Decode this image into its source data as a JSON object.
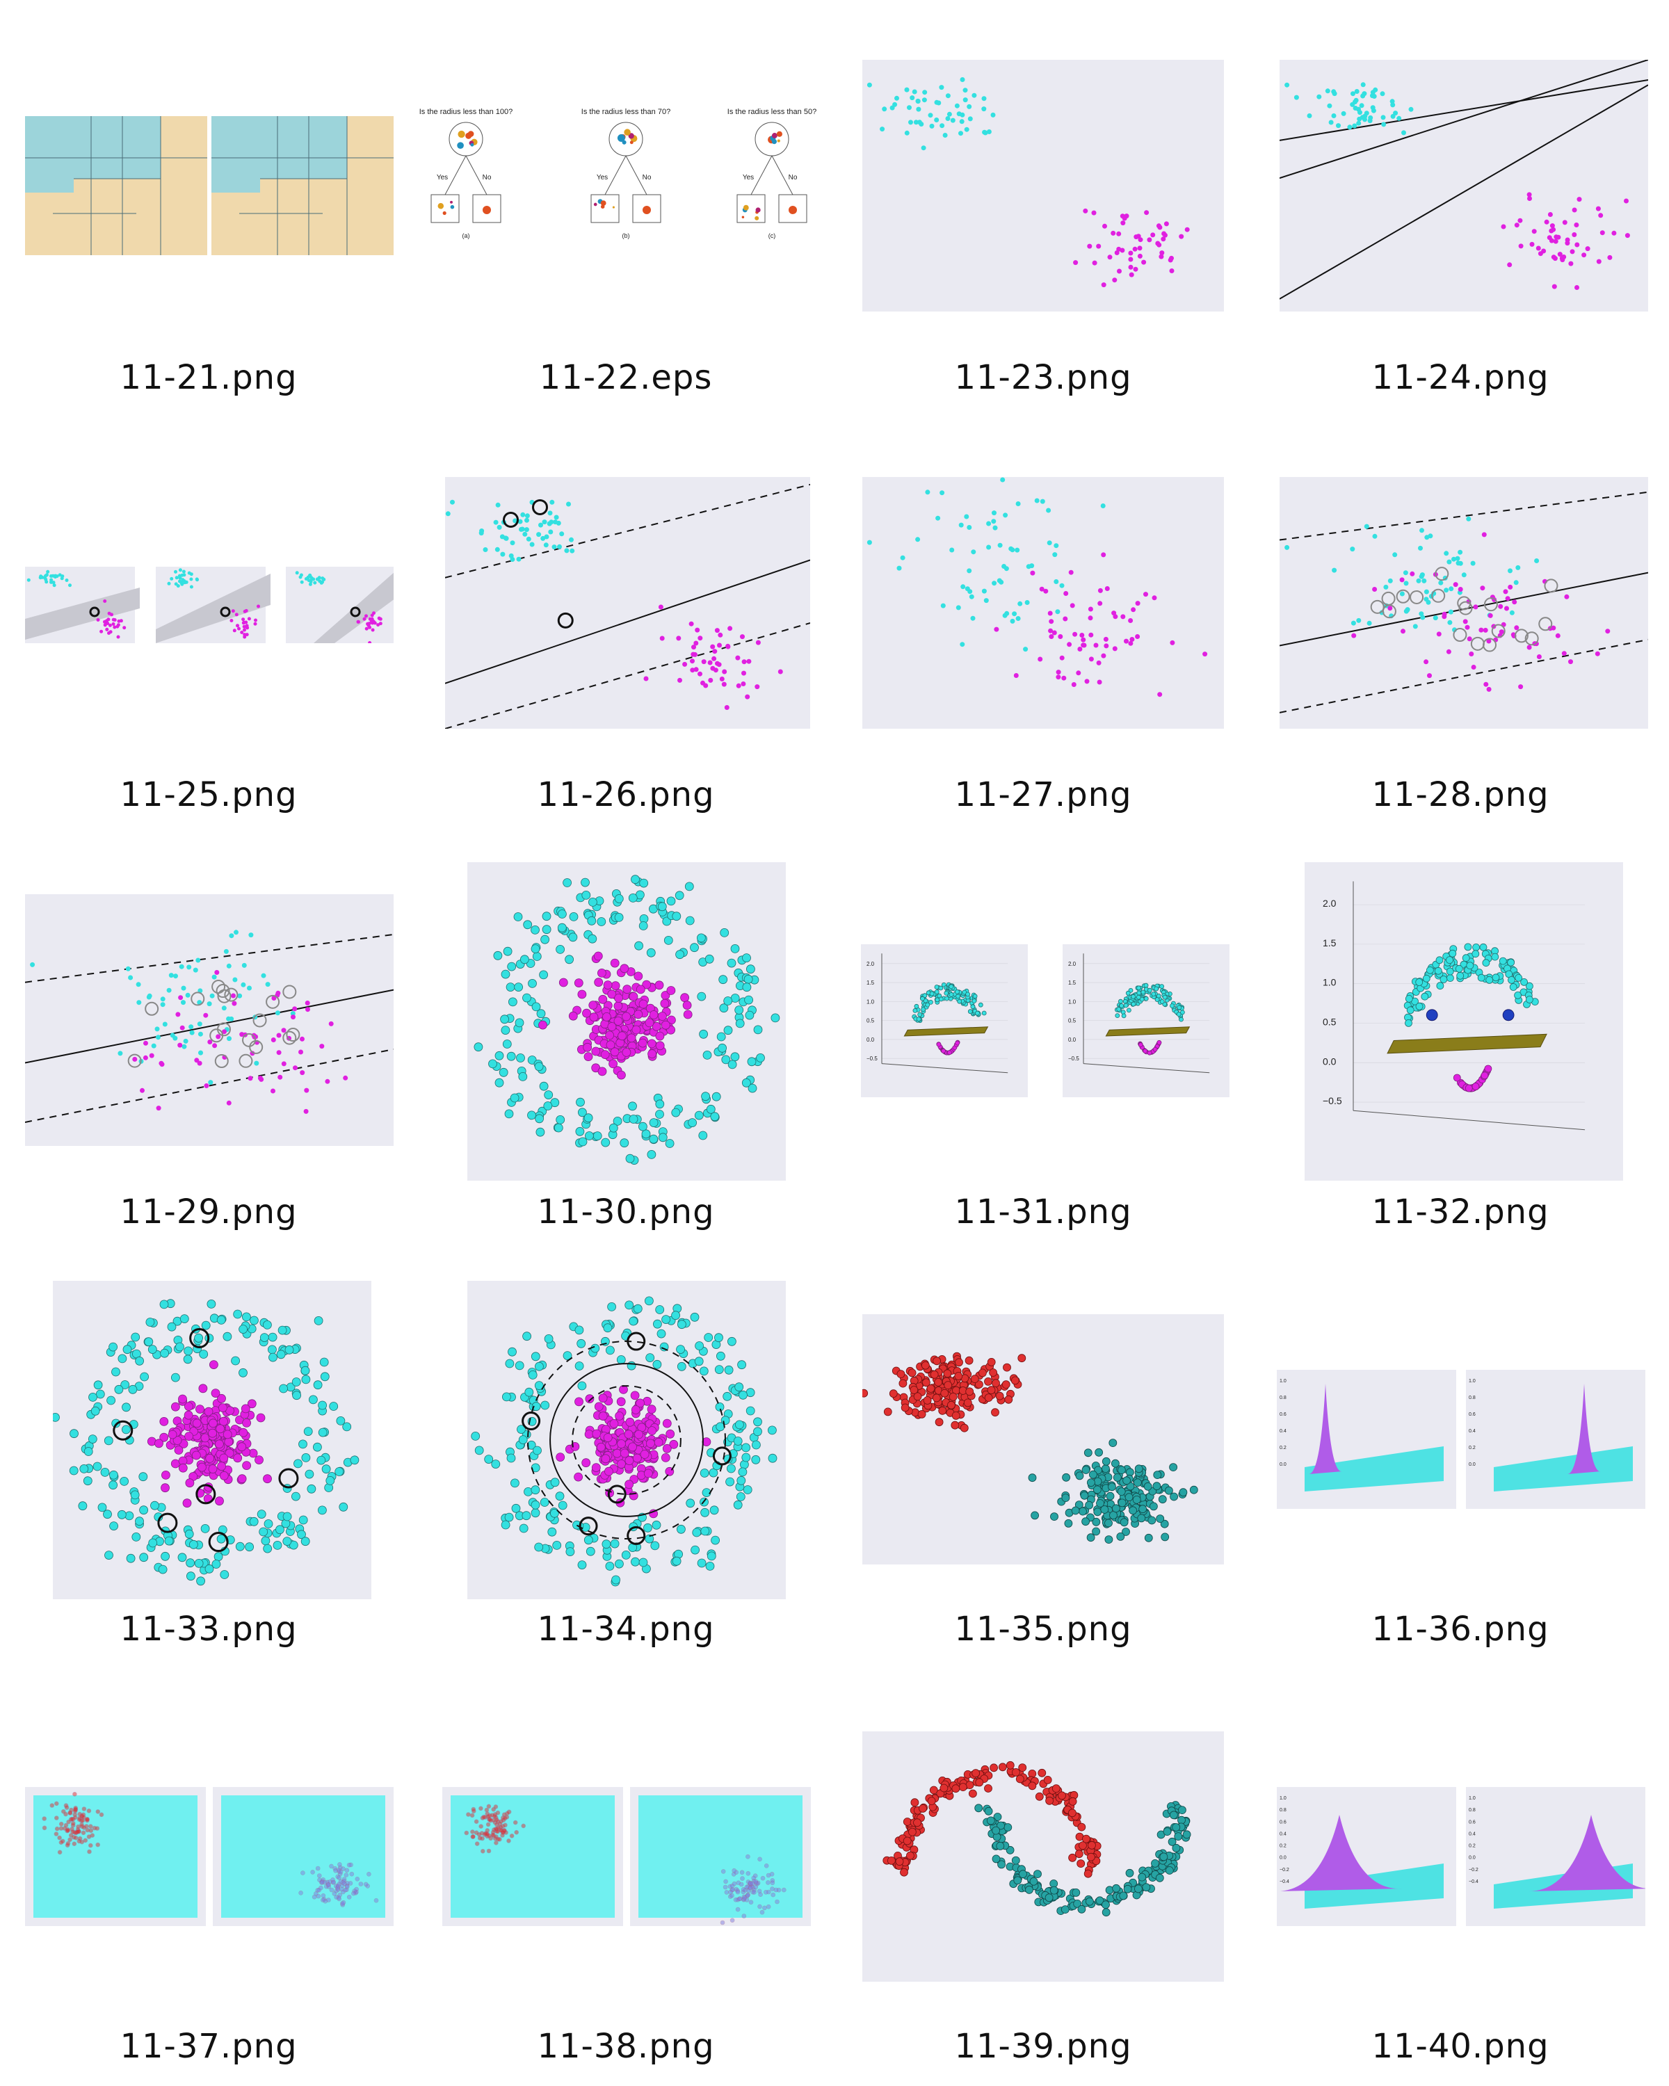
{
  "colors": {
    "background": "#ffffff",
    "plot_bg": "#eaeaf2",
    "cyan": "#33e0e0",
    "magenta": "#e020e0",
    "red": "#e03030",
    "teal": "#26a3a3",
    "beige": "#f0d9ac",
    "blue_teal": "#9cd4da",
    "dark_line": "#111111"
  },
  "files": [
    {
      "name": "11-21.png",
      "icon": "decision-regions-thumbnail"
    },
    {
      "name": "11-22.eps",
      "icon": "decision-tree-thumbnail",
      "tree": {
        "questions": [
          "Is the radius less than 100?",
          "Is the radius less than 70?",
          "Is the radius less than 50?"
        ],
        "yes": "Yes",
        "no": "No",
        "captions": [
          "(a)",
          "(b)",
          "(c)"
        ]
      }
    },
    {
      "name": "11-23.png",
      "icon": "two-clusters-scatter-thumbnail"
    },
    {
      "name": "11-24.png",
      "icon": "separating-lines-thumbnail"
    },
    {
      "name": "11-25.png",
      "icon": "margin-bands-thumbnail"
    },
    {
      "name": "11-26.png",
      "icon": "svm-margin-thumbnail"
    },
    {
      "name": "11-27.png",
      "icon": "overlapping-clusters-thumbnail"
    },
    {
      "name": "11-28.png",
      "icon": "soft-margin-svm-thumbnail"
    },
    {
      "name": "11-29.png",
      "icon": "soft-margin-svm-narrow-thumbnail"
    },
    {
      "name": "11-30.png",
      "icon": "concentric-rings-thumbnail"
    },
    {
      "name": "11-31.png",
      "icon": "3d-plane-pair-thumbnail",
      "ticks": [
        "2.0",
        "1.5",
        "1.0",
        "0.5",
        "0.0",
        "−0.5"
      ]
    },
    {
      "name": "11-32.png",
      "icon": "3d-plane-thumbnail",
      "ticks": [
        "2.0",
        "1.5",
        "1.0",
        "0.5",
        "0.0",
        "−0.5"
      ]
    },
    {
      "name": "11-33.png",
      "icon": "rings-support-vectors-thumbnail"
    },
    {
      "name": "11-34.png",
      "icon": "rings-circular-boundary-thumbnail"
    },
    {
      "name": "11-35.png",
      "icon": "red-teal-clusters-thumbnail"
    },
    {
      "name": "11-36.png",
      "icon": "3d-gaussian-peak-thumbnail",
      "ticks": [
        "1.0",
        "0.8",
        "0.6",
        "0.4",
        "0.2",
        "0.0"
      ]
    },
    {
      "name": "11-37.png",
      "icon": "cluster-density-regions-thumbnail"
    },
    {
      "name": "11-38.png",
      "icon": "cluster-density-regions-alt-thumbnail"
    },
    {
      "name": "11-39.png",
      "icon": "two-moons-thumbnail"
    },
    {
      "name": "11-40.png",
      "icon": "3d-smooth-surface-thumbnail",
      "ticks": [
        "1.0",
        "0.8",
        "0.6",
        "0.4",
        "0.2",
        "0.0",
        "−0.2",
        "−0.4"
      ]
    }
  ]
}
